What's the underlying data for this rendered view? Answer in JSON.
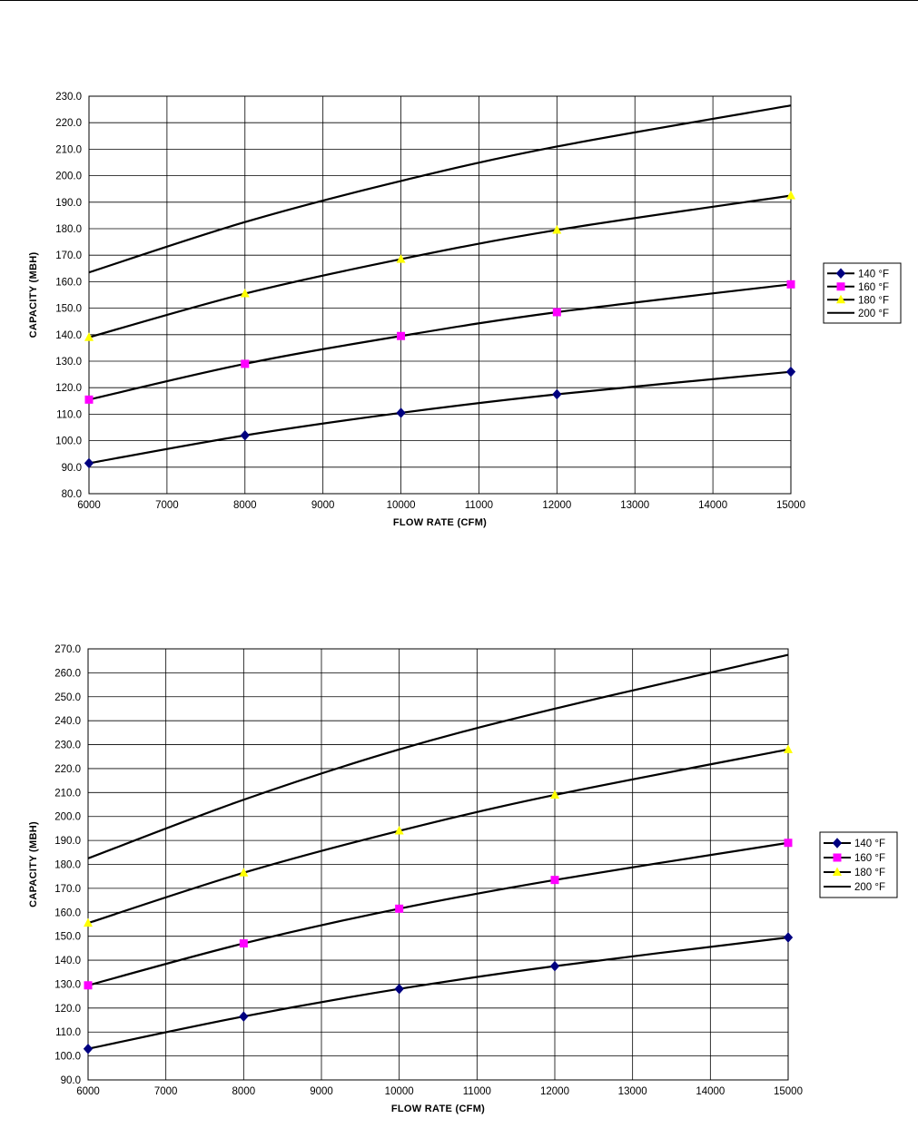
{
  "chart_data": [
    {
      "type": "line",
      "title": "",
      "xlabel": "FLOW RATE (CFM)",
      "ylabel": "CAPACITY (MBH)",
      "xlim": [
        6000,
        15000
      ],
      "ylim": [
        80,
        230
      ],
      "x_ticks": [
        "6000",
        "7000",
        "8000",
        "9000",
        "10000",
        "11000",
        "12000",
        "13000",
        "14000",
        "15000"
      ],
      "y_ticks": [
        "80.0",
        "90.0",
        "100.0",
        "110.0",
        "120.0",
        "130.0",
        "140.0",
        "150.0",
        "160.0",
        "170.0",
        "180.0",
        "190.0",
        "200.0",
        "210.0",
        "220.0",
        "230.0"
      ],
      "grid": true,
      "legend_position": "right",
      "series": [
        {
          "name": "140 °F",
          "marker": "diamond",
          "color": "#000080",
          "points": [
            [
              6000,
              91.5
            ],
            [
              8000,
              102.0
            ],
            [
              10000,
              110.5
            ],
            [
              12000,
              117.5
            ],
            [
              15000,
              126.0
            ]
          ]
        },
        {
          "name": "160 °F",
          "marker": "square",
          "color": "#ff00ff",
          "points": [
            [
              6000,
              115.5
            ],
            [
              8000,
              129.0
            ],
            [
              10000,
              139.5
            ],
            [
              12000,
              148.5
            ],
            [
              15000,
              159.0
            ]
          ]
        },
        {
          "name": "180 °F",
          "marker": "triangle",
          "color": "#ffff00",
          "points": [
            [
              6000,
              139.0
            ],
            [
              8000,
              155.5
            ],
            [
              10000,
              168.5
            ],
            [
              12000,
              179.5
            ],
            [
              15000,
              192.5
            ]
          ]
        },
        {
          "name": "200 °F",
          "marker": "none",
          "color": "#000000",
          "points": [
            [
              6000,
              163.5
            ],
            [
              8000,
              182.5
            ],
            [
              10000,
              198.0
            ],
            [
              12000,
              211.0
            ],
            [
              15000,
              226.5
            ]
          ]
        }
      ]
    },
    {
      "type": "line",
      "title": "",
      "xlabel": "FLOW RATE (CFM)",
      "ylabel": "CAPACITY (MBH)",
      "xlim": [
        6000,
        15000
      ],
      "ylim": [
        90,
        270
      ],
      "x_ticks": [
        "6000",
        "7000",
        "8000",
        "9000",
        "10000",
        "11000",
        "12000",
        "13000",
        "14000",
        "15000"
      ],
      "y_ticks": [
        "90.0",
        "100.0",
        "110.0",
        "120.0",
        "130.0",
        "140.0",
        "150.0",
        "160.0",
        "170.0",
        "180.0",
        "190.0",
        "200.0",
        "210.0",
        "220.0",
        "230.0",
        "240.0",
        "250.0",
        "260.0",
        "270.0"
      ],
      "grid": true,
      "legend_position": "right",
      "series": [
        {
          "name": "140 °F",
          "marker": "diamond",
          "color": "#000080",
          "points": [
            [
              6000,
              103.0
            ],
            [
              8000,
              116.5
            ],
            [
              10000,
              128.0
            ],
            [
              12000,
              137.5
            ],
            [
              15000,
              149.5
            ]
          ]
        },
        {
          "name": "160 °F",
          "marker": "square",
          "color": "#ff00ff",
          "points": [
            [
              6000,
              129.5
            ],
            [
              8000,
              147.0
            ],
            [
              10000,
              161.5
            ],
            [
              12000,
              173.5
            ],
            [
              15000,
              189.0
            ]
          ]
        },
        {
          "name": "180 °F",
          "marker": "triangle",
          "color": "#ffff00",
          "points": [
            [
              6000,
              155.5
            ],
            [
              8000,
              176.5
            ],
            [
              10000,
              194.0
            ],
            [
              12000,
              209.0
            ],
            [
              15000,
              228.0
            ]
          ]
        },
        {
          "name": "200 °F",
          "marker": "none",
          "color": "#000000",
          "points": [
            [
              6000,
              182.5
            ],
            [
              8000,
              207.0
            ],
            [
              10000,
              228.0
            ],
            [
              12000,
              245.0
            ],
            [
              15000,
              267.5
            ]
          ]
        }
      ]
    }
  ]
}
